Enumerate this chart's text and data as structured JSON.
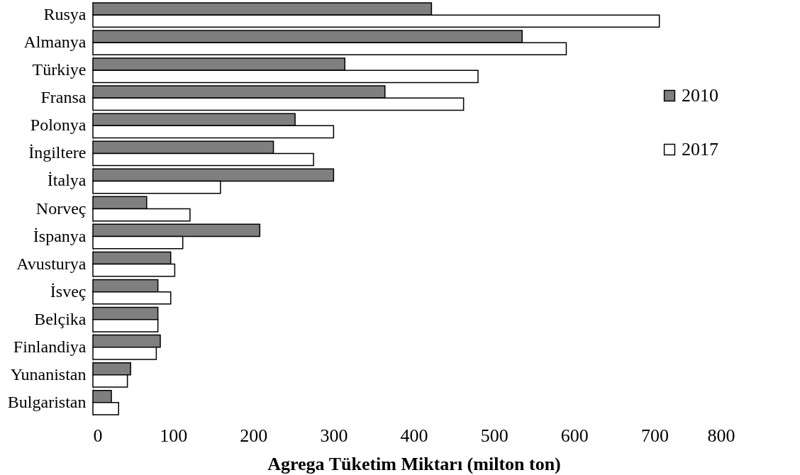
{
  "chart_data": {
    "type": "bar",
    "orientation": "horizontal",
    "xlabel": "Agrega Tüketim Miktarı (milton ton)",
    "categories": [
      "Rusya",
      "Almanya",
      "Türkiye",
      "Fransa",
      "Polonya",
      "İngiltere",
      "İtalya",
      "Norveç",
      "İspanya",
      "Avusturya",
      "İsveç",
      "Belçika",
      "Finlandiya",
      "Yunanistan",
      "Bulgaristan"
    ],
    "series": [
      {
        "name": "2010",
        "color": "#7f7f7f",
        "values": [
          422,
          535,
          314,
          364,
          252,
          225,
          300,
          67,
          208,
          97,
          81,
          81,
          84,
          47,
          23
        ]
      },
      {
        "name": "2017",
        "color": "#ffffff",
        "values": [
          706,
          590,
          480,
          462,
          300,
          275,
          159,
          121,
          112,
          102,
          97,
          81,
          79,
          43,
          32
        ]
      }
    ],
    "xlim": [
      0,
      800
    ],
    "xticks": [
      0,
      100,
      200,
      300,
      400,
      500,
      600,
      700,
      800
    ],
    "grid": false,
    "legend": "right"
  }
}
